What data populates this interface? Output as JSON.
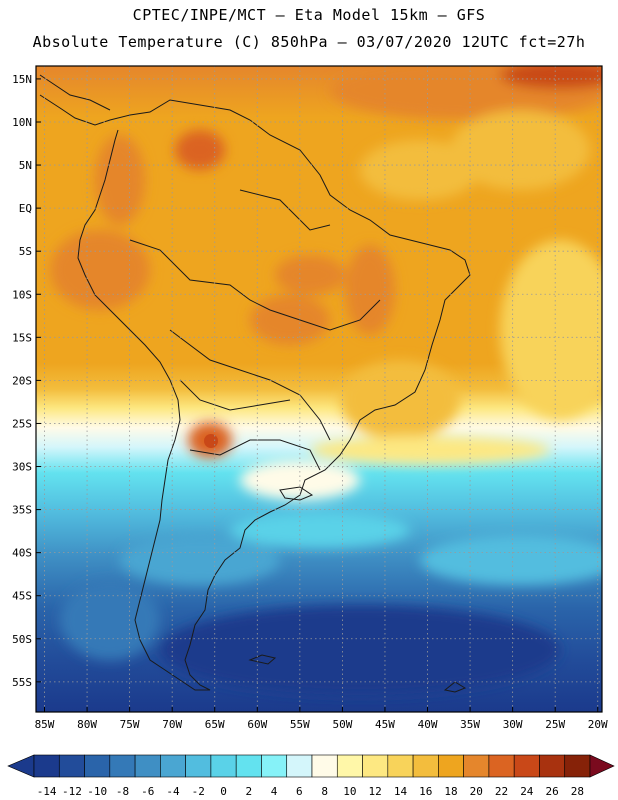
{
  "header": {
    "line1": "CPTEC/INPE/MCT –  Eta Model 15km – GFS",
    "line2": "Absolute Temperature (C) 850hPa – 03/07/2020 12UTC fct=27h"
  },
  "map": {
    "lat_labels": [
      "15N",
      "10N",
      "5N",
      "EQ",
      "5S",
      "10S",
      "15S",
      "20S",
      "25S",
      "30S",
      "35S",
      "40S",
      "45S",
      "50S",
      "55S"
    ],
    "lat_values": [
      15,
      10,
      5,
      0,
      -5,
      -10,
      -15,
      -20,
      -25,
      -30,
      -35,
      -40,
      -45,
      -50,
      -55
    ],
    "lon_labels": [
      "85W",
      "80W",
      "75W",
      "70W",
      "65W",
      "60W",
      "55W",
      "50W",
      "45W",
      "40W",
      "35W",
      "30W",
      "25W",
      "20W"
    ],
    "lon_values": [
      -85,
      -80,
      -75,
      -70,
      -65,
      -60,
      -55,
      -50,
      -45,
      -40,
      -35,
      -30,
      -25,
      -20
    ],
    "lon_range": [
      -86,
      -19.5
    ],
    "lat_range": [
      -58.5,
      16.5
    ]
  },
  "colorbar": {
    "labels": [
      "-14",
      "-12",
      "-10",
      "-8",
      "-6",
      "-4",
      "-2",
      "0",
      "2",
      "4",
      "6",
      "8",
      "10",
      "12",
      "14",
      "16",
      "18",
      "20",
      "22",
      "24",
      "26",
      "28"
    ],
    "colors": [
      "#1b3a8c",
      "#224c9a",
      "#2a64aa",
      "#3479b7",
      "#3f8fc4",
      "#4aa6d2",
      "#52bddf",
      "#5ad2e8",
      "#63e2ef",
      "#86f2f8",
      "#d4f6fb",
      "#fffbe8",
      "#fff7a8",
      "#fde882",
      "#f8d35a",
      "#f3bd3d",
      "#eea51f",
      "#e5862c",
      "#db6422",
      "#c94818",
      "#a8320f",
      "#862208"
    ]
  }
}
